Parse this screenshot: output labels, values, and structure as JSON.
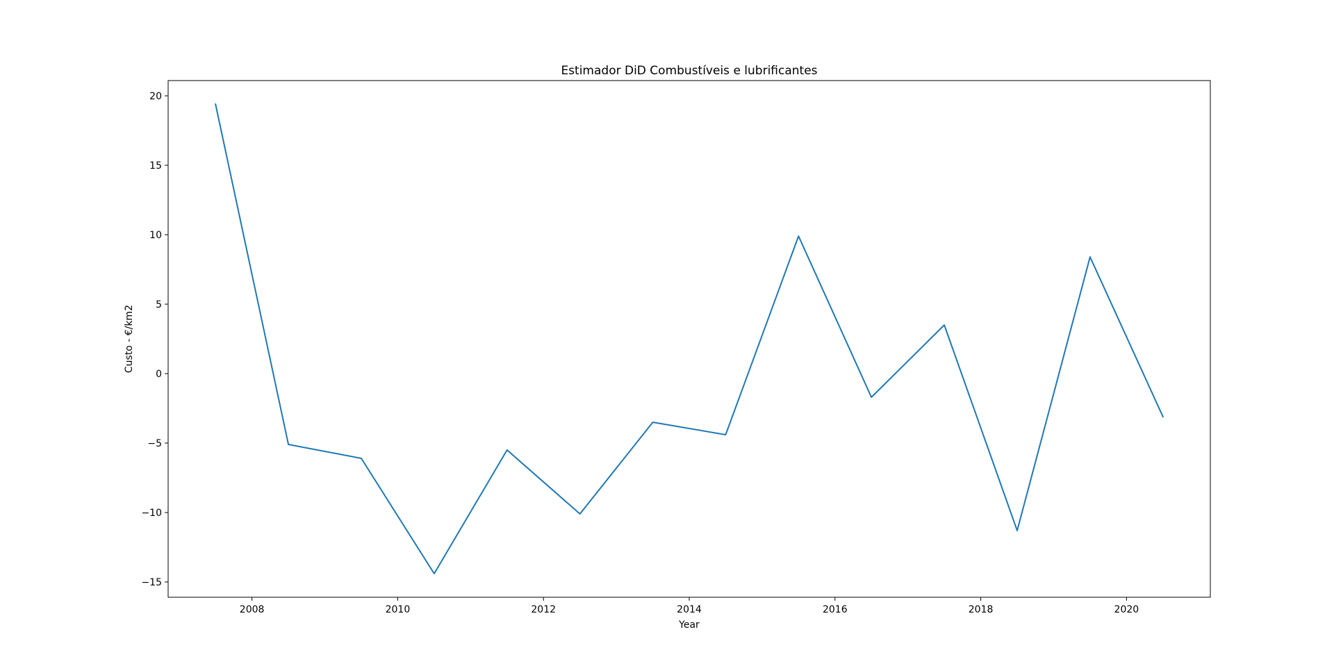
{
  "chart_data": {
    "type": "line",
    "title": "Estimador DiD Combustíveis e lubrificantes",
    "xlabel": "Year",
    "ylabel": "Custo - €/km2",
    "xlim": [
      2006.85,
      2021.15
    ],
    "ylim": [
      -16.1,
      21.1
    ],
    "xticks": [
      2008,
      2010,
      2012,
      2014,
      2016,
      2018,
      2020
    ],
    "yticks": [
      -15,
      -10,
      -5,
      0,
      5,
      10,
      15,
      20
    ],
    "xtick_labels": [
      "2008",
      "2010",
      "2012",
      "2014",
      "2016",
      "2018",
      "2020"
    ],
    "ytick_labels": [
      "−15",
      "−10",
      "−5",
      "0",
      "5",
      "10",
      "15",
      "20"
    ],
    "grid": false,
    "line_color": "#1f77b4",
    "series": [
      {
        "x": [
          2007.5,
          2008.5,
          2009.5,
          2010.5,
          2011.5,
          2012.5,
          2013.5,
          2014.5,
          2015.5,
          2016.5,
          2017.5,
          2018.5,
          2019.5,
          2020.5
        ],
        "values": [
          19.4,
          -5.1,
          -6.1,
          -14.4,
          -5.5,
          -10.1,
          -3.5,
          -4.4,
          9.9,
          -1.7,
          3.5,
          -11.3,
          8.4,
          -3.1
        ]
      }
    ]
  }
}
